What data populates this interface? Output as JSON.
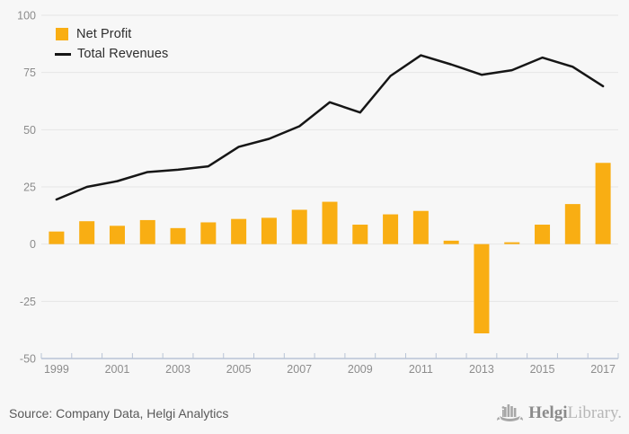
{
  "colors": {
    "background": "#f7f7f7",
    "bar": "#f9ae13",
    "line": "#161616",
    "grid": "#e6e6e6",
    "axis": "#b9c4d6",
    "tick_label": "#8c8c8c",
    "legend_text": "#2e2e2e",
    "source_text": "#595959",
    "logo_dark": "#8b8b8b",
    "logo_light": "#b7b7b7"
  },
  "legend": {
    "items": [
      {
        "label": "Net Profit",
        "type": "bar"
      },
      {
        "label": "Total Revenues",
        "type": "line"
      }
    ]
  },
  "footer": {
    "source": "Source: Company Data, Helgi Analytics",
    "logo_bold": "Helgi",
    "logo_light": "Library."
  },
  "chart_data": {
    "type": "bar+line",
    "categories": [
      1999,
      2000,
      2001,
      2002,
      2003,
      2004,
      2005,
      2006,
      2007,
      2008,
      2009,
      2010,
      2011,
      2012,
      2013,
      2014,
      2015,
      2016,
      2017
    ],
    "series": [
      {
        "name": "Net Profit",
        "type": "bar",
        "values": [
          5.5,
          10,
          8,
          10.5,
          7,
          9.5,
          11,
          11.5,
          15,
          18.5,
          8.5,
          13,
          14.5,
          1.5,
          -39,
          0.8,
          8.5,
          17.5,
          35.5
        ]
      },
      {
        "name": "Total Revenues",
        "type": "line",
        "values": [
          19.5,
          25,
          27.5,
          31.5,
          32.5,
          34,
          42.5,
          46,
          51.5,
          62,
          57.5,
          73.5,
          82.5,
          78.5,
          74,
          76,
          81.5,
          77.5,
          69
        ]
      }
    ],
    "ylim": [
      -50,
      100
    ],
    "yticks": [
      100,
      75,
      50,
      25,
      0,
      -25,
      -50
    ],
    "xtick_labels": [
      "1999",
      "2001",
      "2003",
      "2005",
      "2007",
      "2009",
      "2011",
      "2013",
      "2015",
      "2017"
    ],
    "grid": true,
    "legend_position": "top-left"
  }
}
